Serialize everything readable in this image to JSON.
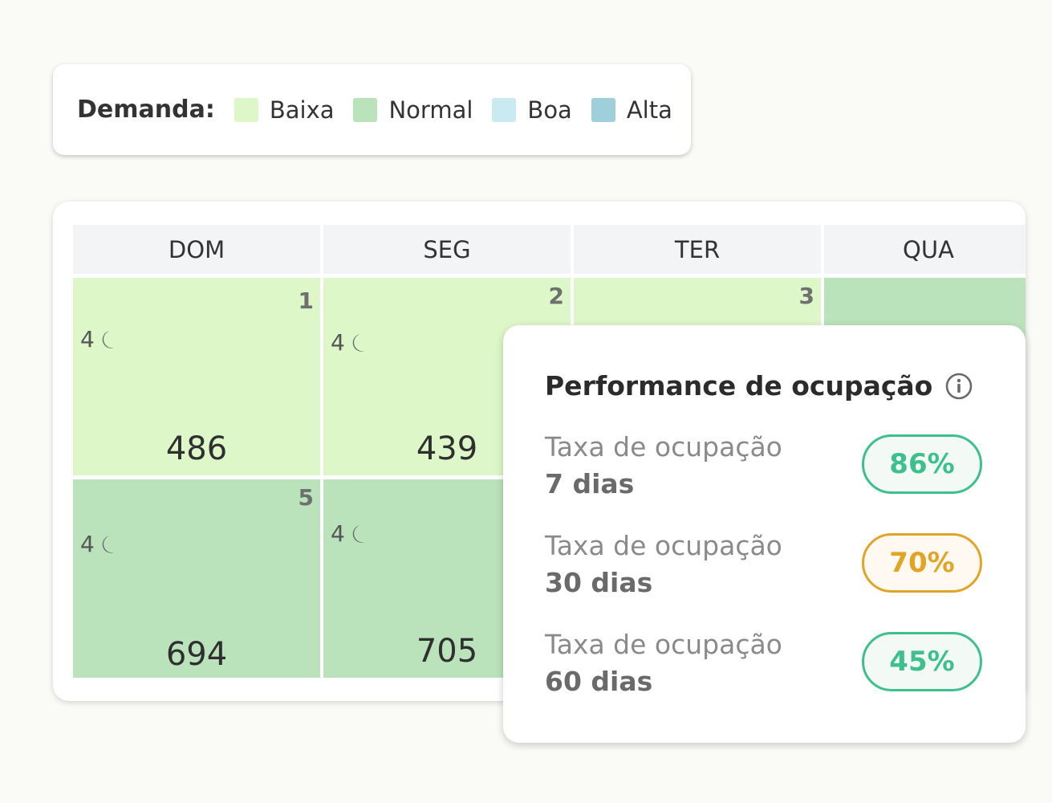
{
  "legend": {
    "title": "Demanda:",
    "items": [
      {
        "label": "Baixa",
        "color": "#ddf7c9"
      },
      {
        "label": "Normal",
        "color": "#bae3bb"
      },
      {
        "label": "Boa",
        "color": "#c8eaf0"
      },
      {
        "label": "Alta",
        "color": "#9fcfdb"
      }
    ]
  },
  "calendar": {
    "headers": [
      "DOM",
      "SEG",
      "TER",
      "QUA"
    ],
    "cells": [
      {
        "day": "1",
        "nights": "4",
        "value": "486",
        "demand": "Baixa",
        "color": "#ddf7c9"
      },
      {
        "day": "2",
        "nights": "4",
        "value": "439",
        "demand": "Baixa",
        "color": "#ddf7c9"
      },
      {
        "day": "3",
        "nights": "",
        "value": "",
        "demand": "Baixa",
        "color": "#ddf7c9"
      },
      {
        "day": "",
        "nights": "",
        "value": "",
        "demand": "Normal",
        "color": "#bae3bb"
      },
      {
        "day": "5",
        "nights": "4",
        "value": "694",
        "demand": "Normal",
        "color": "#bae3bb"
      },
      {
        "day": "",
        "nights": "4",
        "value": "705",
        "demand": "Normal",
        "color": "#bae3bb"
      }
    ]
  },
  "performance": {
    "title": "Performance de ocupação",
    "info_icon": "info-icon",
    "rows": [
      {
        "label": "Taxa de ocupação",
        "period": "7 dias",
        "value": "86%",
        "status_color": "#3dbf8e",
        "badge_bg": "#f3faf5"
      },
      {
        "label": "Taxa de ocupação",
        "period": "30 dias",
        "value": "70%",
        "status_color": "#e0a526",
        "badge_bg": "#fff9f1"
      },
      {
        "label": "Taxa de ocupação",
        "period": "60 dias",
        "value": "45%",
        "status_color": "#3dbf8e",
        "badge_bg": "#f3faf5"
      }
    ]
  }
}
